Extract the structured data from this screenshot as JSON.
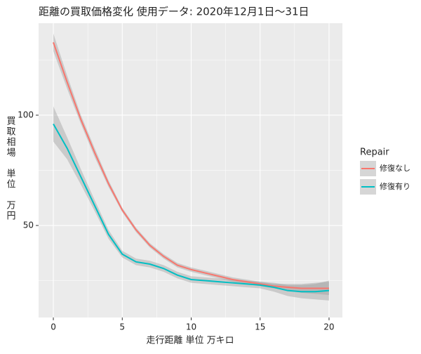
{
  "chart_data": {
    "type": "line",
    "title": "距離の買取価格変化 使用データ: 2020年12月1日～31日",
    "x_label": "走行距離 単位 万キロ",
    "y_label": "買取相場　単位　万円",
    "legend_title": "Repair",
    "x": [
      0,
      1,
      2,
      3,
      4,
      5,
      6,
      7,
      8,
      9,
      10,
      11,
      12,
      13,
      14,
      15,
      16,
      17,
      18,
      19,
      20
    ],
    "series": [
      {
        "name": "修復なし",
        "color": "#F8766D",
        "values": [
          133,
          115,
          98,
          83,
          69,
          57,
          48,
          41,
          36,
          32,
          30,
          28.5,
          27,
          25.5,
          24.5,
          23.5,
          22.5,
          22,
          21.5,
          21.5,
          21.5
        ],
        "lower": [
          129,
          112,
          96,
          81,
          67.5,
          56,
          47,
          40,
          35,
          31,
          29,
          27.5,
          26,
          24.5,
          23.5,
          22.5,
          21.5,
          20.5,
          19.5,
          19,
          18.5
        ],
        "upper": [
          137,
          118,
          100,
          85,
          70.5,
          58,
          49,
          42,
          37,
          33,
          31,
          29.5,
          28,
          26.5,
          25.5,
          24.5,
          23.5,
          23.5,
          23.5,
          24,
          24.5
        ]
      },
      {
        "name": "修復有り",
        "color": "#00BFC4",
        "values": [
          96,
          85,
          72,
          59,
          46,
          37,
          33.5,
          32.5,
          30.5,
          27.5,
          25.5,
          25,
          24.5,
          24,
          23.5,
          23,
          22,
          20.5,
          20,
          20,
          20.5
        ],
        "lower": [
          88,
          80,
          68.5,
          56.5,
          44,
          35.5,
          32,
          31,
          29,
          26,
          24,
          23.5,
          23,
          22.5,
          22,
          21.5,
          20,
          18,
          17,
          16.5,
          16
        ],
        "upper": [
          104,
          90,
          75.5,
          61.5,
          48,
          38.5,
          35,
          34,
          32,
          29,
          27,
          26.5,
          26,
          25.5,
          25,
          24.5,
          24,
          23,
          23,
          23.5,
          25
        ]
      }
    ],
    "xlim": [
      -1.07,
      20.97
    ],
    "ylim": [
      8.3,
      141.7
    ],
    "xticks": [
      0,
      5,
      10,
      15,
      20
    ],
    "yticks": [
      50,
      100
    ],
    "x_minor_ticks": [
      2.5,
      7.5,
      12.5,
      17.5
    ],
    "y_minor_ticks": [
      25,
      75,
      125
    ],
    "band_color": "#999999",
    "panel_color": "#EBEBEB",
    "grid": true
  }
}
